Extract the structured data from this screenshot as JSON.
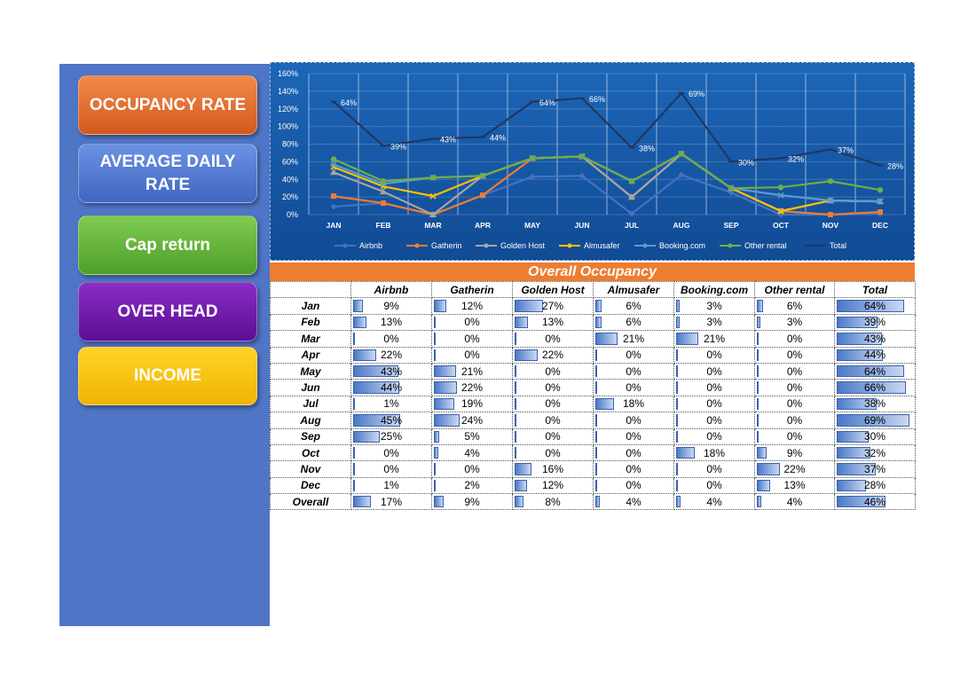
{
  "sidebar": {
    "buttons": [
      {
        "label": "OCCUPANCY RATE"
      },
      {
        "label": "AVERAGE DAILY RATE"
      },
      {
        "label": "Cap return"
      },
      {
        "label": "OVER HEAD"
      },
      {
        "label": "INCOME"
      }
    ]
  },
  "colors": {
    "Airbnb": "#4472c4",
    "Gatherin": "#ed7d31",
    "Golden Host": "#a5a5a5",
    "Almusafer": "#ffc000",
    "Booking.com": "#5b9bd5",
    "Other rental": "#70ad47",
    "Total": "#1f3864"
  },
  "chart_data": {
    "type": "line",
    "categories": [
      "JAN",
      "FEB",
      "MAR",
      "APR",
      "MAY",
      "JUN",
      "JUL",
      "AUG",
      "SEP",
      "OCT",
      "NOV",
      "DEC"
    ],
    "y_ticks": [
      "0%",
      "20%",
      "40%",
      "60%",
      "80%",
      "100%",
      "120%",
      "140%",
      "160%"
    ],
    "ylim": [
      0,
      160
    ],
    "series": [
      {
        "name": "Airbnb",
        "values": [
          9,
          13,
          0,
          22,
          43,
          44,
          1,
          45,
          25,
          0,
          0,
          1
        ]
      },
      {
        "name": "Gatherin",
        "values": [
          12,
          0,
          0,
          0,
          21,
          22,
          19,
          24,
          5,
          4,
          0,
          2
        ]
      },
      {
        "name": "Golden Host",
        "values": [
          27,
          13,
          0,
          22,
          0,
          0,
          0,
          0,
          0,
          0,
          16,
          12
        ]
      },
      {
        "name": "Almusafer",
        "values": [
          6,
          6,
          21,
          0,
          0,
          0,
          18,
          0,
          0,
          0,
          0,
          0
        ]
      },
      {
        "name": "Booking.com",
        "values": [
          3,
          3,
          21,
          0,
          0,
          0,
          0,
          0,
          0,
          18,
          0,
          0
        ]
      },
      {
        "name": "Other rental",
        "values": [
          6,
          3,
          0,
          0,
          0,
          0,
          0,
          0,
          0,
          9,
          22,
          13
        ]
      },
      {
        "name": "Total",
        "values": [
          64,
          39,
          43,
          44,
          64,
          66,
          38,
          69,
          30,
          32,
          37,
          28
        ]
      }
    ],
    "stack_line_series": [
      "Airbnb",
      "Gatherin",
      "Golden Host",
      "Almusafer",
      "Booking.com",
      "Other rental"
    ],
    "total_labels": [
      "64%",
      "39%",
      "43%",
      "44%",
      "64%",
      "66%",
      "38%",
      "69%",
      "30%",
      "32%",
      "37%",
      "28%"
    ],
    "legend_position": "bottom",
    "grid": true
  },
  "table": {
    "title": "Overall Occupancy",
    "headers": [
      "",
      "Airbnb",
      "Gatherin",
      "Golden Host",
      "Almusafer",
      "Booking.com",
      "Other rental",
      "Total"
    ],
    "rows": [
      {
        "month": "Jan",
        "vals": [
          "9%",
          "12%",
          "27%",
          "6%",
          "3%",
          "6%",
          "64%"
        ],
        "pct": [
          9,
          12,
          27,
          6,
          3,
          6,
          64
        ]
      },
      {
        "month": "Feb",
        "vals": [
          "13%",
          "0%",
          "13%",
          "6%",
          "3%",
          "3%",
          "39%"
        ],
        "pct": [
          13,
          0,
          13,
          6,
          3,
          3,
          39
        ]
      },
      {
        "month": "Mar",
        "vals": [
          "0%",
          "0%",
          "0%",
          "21%",
          "21%",
          "0%",
          "43%"
        ],
        "pct": [
          0,
          0,
          0,
          21,
          21,
          0,
          43
        ]
      },
      {
        "month": "Apr",
        "vals": [
          "22%",
          "0%",
          "22%",
          "0%",
          "0%",
          "0%",
          "44%"
        ],
        "pct": [
          22,
          0,
          22,
          0,
          0,
          0,
          44
        ]
      },
      {
        "month": "May",
        "vals": [
          "43%",
          "21%",
          "0%",
          "0%",
          "0%",
          "0%",
          "64%"
        ],
        "pct": [
          43,
          21,
          0,
          0,
          0,
          0,
          64
        ]
      },
      {
        "month": "Jun",
        "vals": [
          "44%",
          "22%",
          "0%",
          "0%",
          "0%",
          "0%",
          "66%"
        ],
        "pct": [
          44,
          22,
          0,
          0,
          0,
          0,
          66
        ]
      },
      {
        "month": "Jul",
        "vals": [
          "1%",
          "19%",
          "0%",
          "18%",
          "0%",
          "0%",
          "38%"
        ],
        "pct": [
          1,
          19,
          0,
          18,
          0,
          0,
          38
        ]
      },
      {
        "month": "Aug",
        "vals": [
          "45%",
          "24%",
          "0%",
          "0%",
          "0%",
          "0%",
          "69%"
        ],
        "pct": [
          45,
          24,
          0,
          0,
          0,
          0,
          69
        ]
      },
      {
        "month": "Sep",
        "vals": [
          "25%",
          "5%",
          "0%",
          "0%",
          "0%",
          "0%",
          "30%"
        ],
        "pct": [
          25,
          5,
          0,
          0,
          0,
          0,
          30
        ]
      },
      {
        "month": "Oct",
        "vals": [
          "0%",
          "4%",
          "0%",
          "0%",
          "18%",
          "9%",
          "32%"
        ],
        "pct": [
          0,
          4,
          0,
          0,
          18,
          9,
          32
        ]
      },
      {
        "month": "Nov",
        "vals": [
          "0%",
          "0%",
          "16%",
          "0%",
          "0%",
          "22%",
          "37%"
        ],
        "pct": [
          0,
          0,
          16,
          0,
          0,
          22,
          37
        ]
      },
      {
        "month": "Dec",
        "vals": [
          "1%",
          "2%",
          "12%",
          "0%",
          "0%",
          "13%",
          "28%"
        ],
        "pct": [
          1,
          2,
          12,
          0,
          0,
          13,
          28
        ]
      },
      {
        "month": "Overall",
        "vals": [
          "17%",
          "9%",
          "8%",
          "4%",
          "4%",
          "4%",
          "46%"
        ],
        "pct": [
          17,
          9,
          8,
          4,
          4,
          4,
          46
        ]
      }
    ]
  }
}
